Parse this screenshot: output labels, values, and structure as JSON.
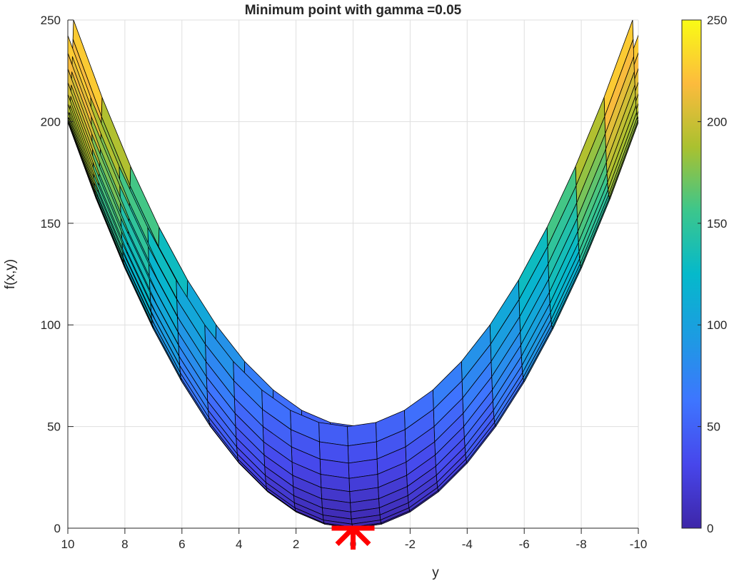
{
  "chart_data": {
    "type": "surface",
    "view": "side view along the x axis (y horizontal, f vertical)",
    "title": "Minimum point with gamma =0.05",
    "xlabel": "y",
    "ylabel": "f(x,y)",
    "function": "f(x,y) = 0.5*x^2 + 2*y^2",
    "x_range": [
      -10,
      10
    ],
    "y_range": [
      -10,
      10
    ],
    "mesh_lines": 21,
    "xlim": [
      -10,
      10
    ],
    "x_reversed": true,
    "ylim": [
      0,
      250
    ],
    "xticks": [
      10,
      8,
      6,
      4,
      2,
      0,
      -2,
      -4,
      -6,
      -8,
      -10
    ],
    "xtick_labels": [
      "10",
      "8",
      "6",
      "4",
      "2",
      "0",
      "-2",
      "-4",
      "-6",
      "-8",
      "-10"
    ],
    "yticks": [
      0,
      50,
      100,
      150,
      200,
      250
    ],
    "ytick_labels": [
      "0",
      "50",
      "100",
      "150",
      "200",
      "250"
    ],
    "grid": true,
    "colormap": "parula",
    "colorbar": {
      "range": [
        0,
        250
      ],
      "ticks": [
        0,
        50,
        100,
        150,
        200,
        250
      ],
      "tick_labels": [
        "0",
        "50",
        "100",
        "150",
        "200",
        "250"
      ]
    },
    "marker": {
      "y": 0,
      "f": 0,
      "symbol": "*",
      "color": "#ff0000"
    }
  }
}
